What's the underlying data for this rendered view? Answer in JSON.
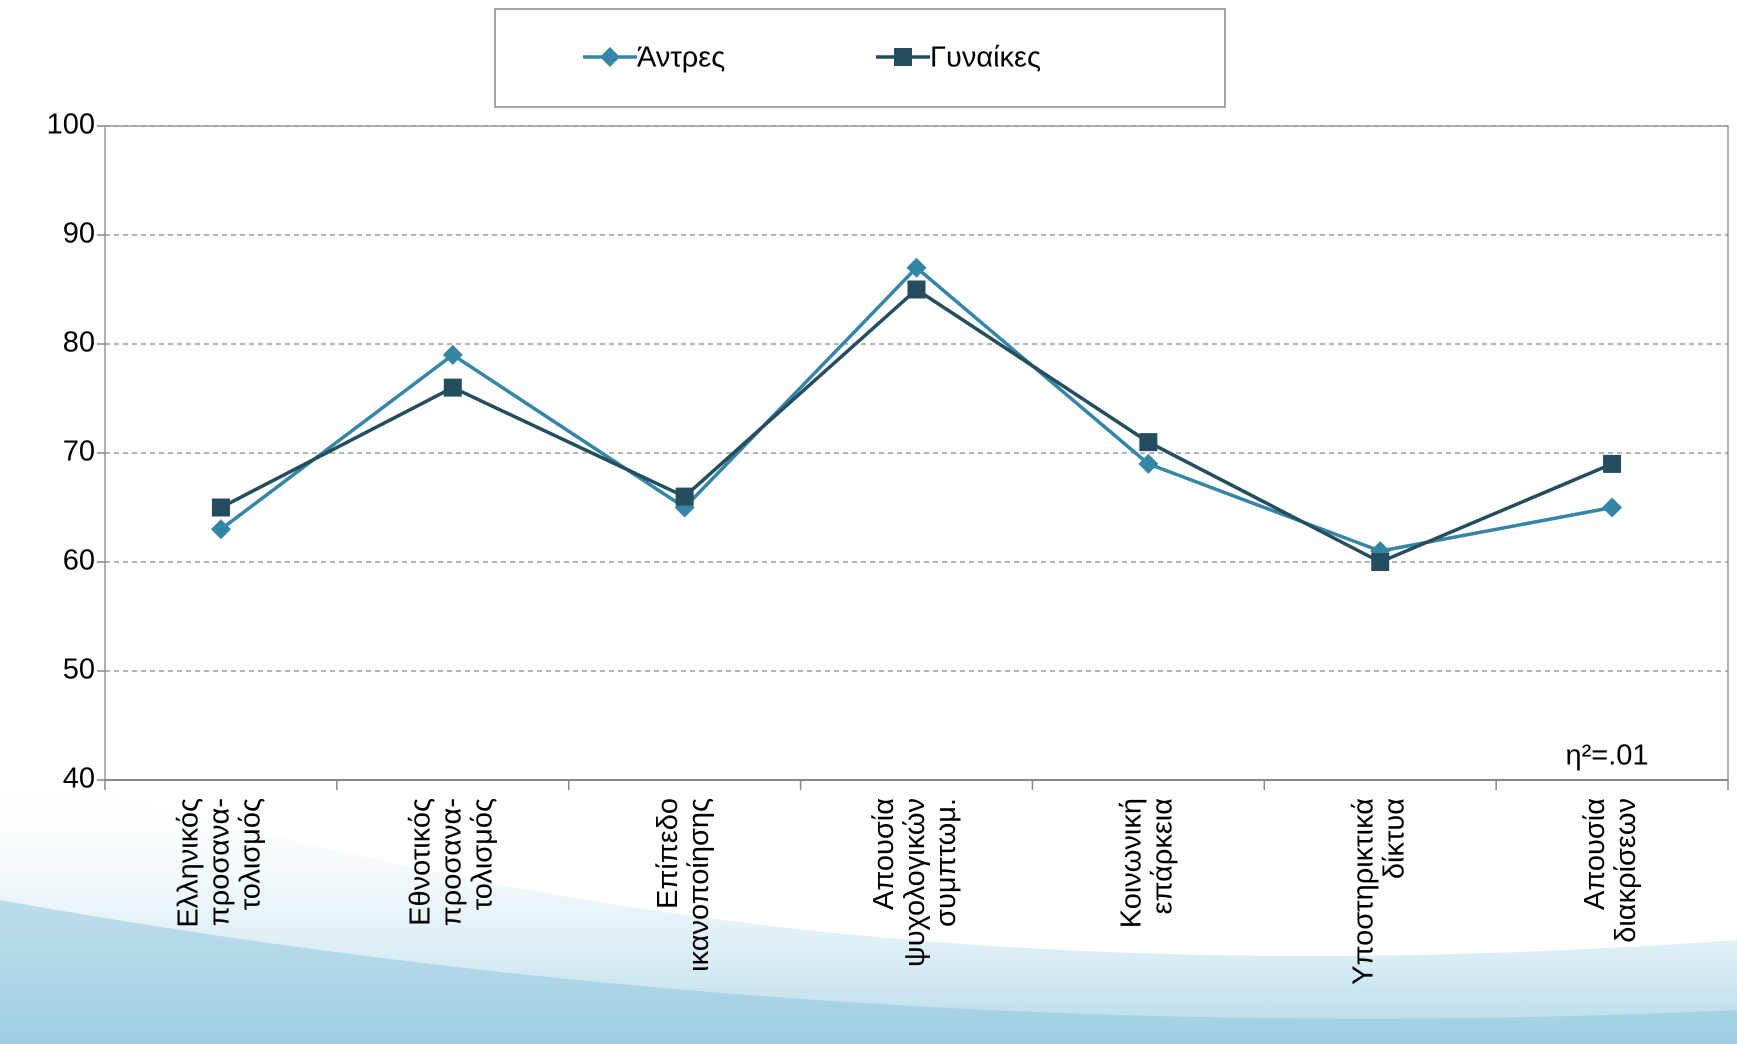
{
  "chart_data": {
    "type": "line",
    "categories": [
      [
        "Ελληνικός",
        "προσανα-",
        "τολισμός"
      ],
      [
        "Εθνοτικός",
        "προσανα-",
        "τολισμός"
      ],
      [
        "Επίπεδο",
        "ικανοποίησης"
      ],
      [
        "Απουσία",
        "ψυχολογικών",
        "συμπτωμ."
      ],
      [
        "Κοινωνική",
        "επάρκεια"
      ],
      [
        "Υποστηρικτικά",
        "δίκτυα"
      ],
      [
        "Απουσία",
        "διακρίσεων"
      ]
    ],
    "series": [
      {
        "name": "Άντρες",
        "color": "#3585a6",
        "marker": "diamond",
        "values": [
          63,
          79,
          65,
          87,
          69,
          61,
          65
        ]
      },
      {
        "name": "Γυναίκες",
        "color": "#244e5e",
        "marker": "square",
        "values": [
          65,
          76,
          66,
          85,
          71,
          60,
          69
        ]
      }
    ],
    "ylim": [
      40,
      100
    ],
    "yticks": [
      40,
      50,
      60,
      70,
      80,
      90,
      100
    ],
    "grid": true,
    "legend": "top",
    "annotation": "η²=.01"
  }
}
